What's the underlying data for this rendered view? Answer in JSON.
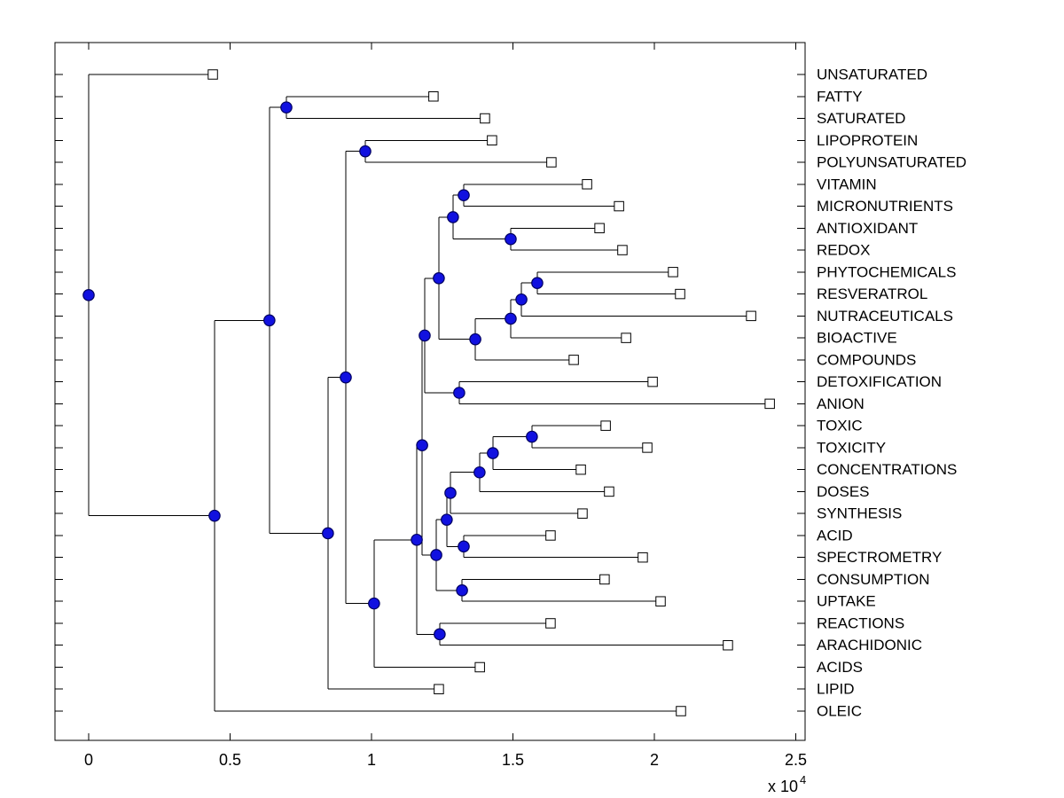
{
  "figure": {
    "background": "#ffffff",
    "plot_border_color": "#000000",
    "branch_line_color": "#000000",
    "internal_marker": {
      "shape": "circle-icon",
      "fill": "#1111e0",
      "stroke": "#000060"
    },
    "leaf_marker": {
      "shape": "square-icon",
      "fill": "#ffffff",
      "stroke": "#000000"
    }
  },
  "chart_data": {
    "type": "dendrogram",
    "subtype": "phylogenetic-tree-phylogram",
    "orientation": "left-to-right",
    "title": "",
    "legend": "none",
    "grid": "off",
    "x_axis": {
      "range": [
        0,
        2.53
      ],
      "tick_values": [
        0,
        0.5,
        1,
        1.5,
        2,
        2.5
      ],
      "tick_labels": [
        "0",
        "0.5",
        "1",
        "1.5",
        "2",
        "2.5"
      ],
      "scale_multiplier_base": "x 10",
      "scale_multiplier_exponent": "4",
      "units_note": "branch x positions are in units of 10^4 (multiply by 10000)"
    },
    "leaves": [
      {
        "label": "UNSATURATED",
        "x": 0.439
      },
      {
        "label": "FATTY",
        "x": 1.219
      },
      {
        "label": "SATURATED",
        "x": 1.401
      },
      {
        "label": "LIPOPROTEIN",
        "x": 1.426
      },
      {
        "label": "POLYUNSATURATED",
        "x": 1.636
      },
      {
        "label": "VITAMIN",
        "x": 1.762
      },
      {
        "label": "MICRONUTRIENTS",
        "x": 1.875
      },
      {
        "label": "ANTIOXIDANT",
        "x": 1.806
      },
      {
        "label": "REDOX",
        "x": 1.887
      },
      {
        "label": "PHYTOCHEMICALS",
        "x": 2.066
      },
      {
        "label": "RESVERATROL",
        "x": 2.091
      },
      {
        "label": "NUTRACEUTICALS",
        "x": 2.342
      },
      {
        "label": "BIOACTIVE",
        "x": 1.9
      },
      {
        "label": "COMPOUNDS",
        "x": 1.715
      },
      {
        "label": "DETOXIFICATION",
        "x": 1.994
      },
      {
        "label": "ANION",
        "x": 2.408
      },
      {
        "label": "TOXIC",
        "x": 1.828
      },
      {
        "label": "TOXICITY",
        "x": 1.975
      },
      {
        "label": "CONCENTRATIONS",
        "x": 1.74
      },
      {
        "label": "DOSES",
        "x": 1.84
      },
      {
        "label": "SYNTHESIS",
        "x": 1.746
      },
      {
        "label": "ACID",
        "x": 1.633
      },
      {
        "label": "SPECTROMETRY",
        "x": 1.959
      },
      {
        "label": "CONSUMPTION",
        "x": 1.824
      },
      {
        "label": "UPTAKE",
        "x": 2.022
      },
      {
        "label": "REACTIONS",
        "x": 1.633
      },
      {
        "label": "ARACHIDONIC",
        "x": 2.26
      },
      {
        "label": "ACIDS",
        "x": 1.383
      },
      {
        "label": "LIPID",
        "x": 1.238
      },
      {
        "label": "OLEIC",
        "x": 2.094
      }
    ],
    "internal_nodes": [
      {
        "id": "n1",
        "x": 0.0,
        "children": [
          "leaf:UNSATURATED",
          "n2"
        ]
      },
      {
        "id": "n2",
        "x": 0.445,
        "children": [
          "n3",
          "leaf:OLEIC"
        ]
      },
      {
        "id": "n3",
        "x": 0.639,
        "children": [
          "n4",
          "n5"
        ]
      },
      {
        "id": "n4",
        "x": 0.699,
        "children": [
          "leaf:FATTY",
          "leaf:SATURATED"
        ]
      },
      {
        "id": "n5",
        "x": 0.846,
        "children": [
          "n6",
          "leaf:LIPID"
        ]
      },
      {
        "id": "n6",
        "x": 0.909,
        "children": [
          "n7",
          "n8"
        ]
      },
      {
        "id": "n7",
        "x": 0.978,
        "children": [
          "leaf:LIPOPROTEIN",
          "leaf:POLYUNSATURATED"
        ]
      },
      {
        "id": "n8",
        "x": 1.009,
        "children": [
          "n9",
          "leaf:ACIDS"
        ]
      },
      {
        "id": "n9",
        "x": 1.16,
        "children": [
          "n10",
          "n11"
        ]
      },
      {
        "id": "n10",
        "x": 1.179,
        "children": [
          "n12",
          "n13"
        ]
      },
      {
        "id": "n11",
        "x": 1.241,
        "children": [
          "leaf:REACTIONS",
          "leaf:ARACHIDONIC"
        ]
      },
      {
        "id": "n12",
        "x": 1.188,
        "children": [
          "n14",
          "n15"
        ]
      },
      {
        "id": "n13",
        "x": 1.229,
        "children": [
          "n16",
          "n17"
        ]
      },
      {
        "id": "n14",
        "x": 1.238,
        "children": [
          "n18",
          "n19"
        ]
      },
      {
        "id": "n15",
        "x": 1.31,
        "children": [
          "leaf:DETOXIFICATION",
          "leaf:ANION"
        ]
      },
      {
        "id": "n16",
        "x": 1.266,
        "children": [
          "n20",
          "n21"
        ]
      },
      {
        "id": "n17",
        "x": 1.32,
        "children": [
          "leaf:CONSUMPTION",
          "leaf:UPTAKE"
        ]
      },
      {
        "id": "n18",
        "x": 1.288,
        "children": [
          "n22",
          "n23"
        ]
      },
      {
        "id": "n19",
        "x": 1.367,
        "children": [
          "n24",
          "leaf:COMPOUNDS"
        ]
      },
      {
        "id": "n20",
        "x": 1.279,
        "children": [
          "n25",
          "leaf:SYNTHESIS"
        ]
      },
      {
        "id": "n21",
        "x": 1.326,
        "children": [
          "leaf:ACID",
          "leaf:SPECTROMETRY"
        ]
      },
      {
        "id": "n22",
        "x": 1.326,
        "children": [
          "leaf:VITAMIN",
          "leaf:MICRONUTRIENTS"
        ]
      },
      {
        "id": "n23",
        "x": 1.492,
        "children": [
          "leaf:ANTIOXIDANT",
          "leaf:REDOX"
        ]
      },
      {
        "id": "n24",
        "x": 1.492,
        "children": [
          "n26",
          "leaf:BIOACTIVE"
        ]
      },
      {
        "id": "n25",
        "x": 1.382,
        "children": [
          "n27",
          "leaf:DOSES"
        ]
      },
      {
        "id": "n26",
        "x": 1.53,
        "children": [
          "n28",
          "leaf:NUTRACEUTICALS"
        ]
      },
      {
        "id": "n27",
        "x": 1.429,
        "children": [
          "n29",
          "leaf:CONCENTRATIONS"
        ]
      },
      {
        "id": "n28",
        "x": 1.586,
        "children": [
          "leaf:PHYTOCHEMICALS",
          "leaf:RESVERATROL"
        ]
      },
      {
        "id": "n29",
        "x": 1.567,
        "children": [
          "leaf:TOXIC",
          "leaf:TOXICITY"
        ]
      }
    ]
  }
}
